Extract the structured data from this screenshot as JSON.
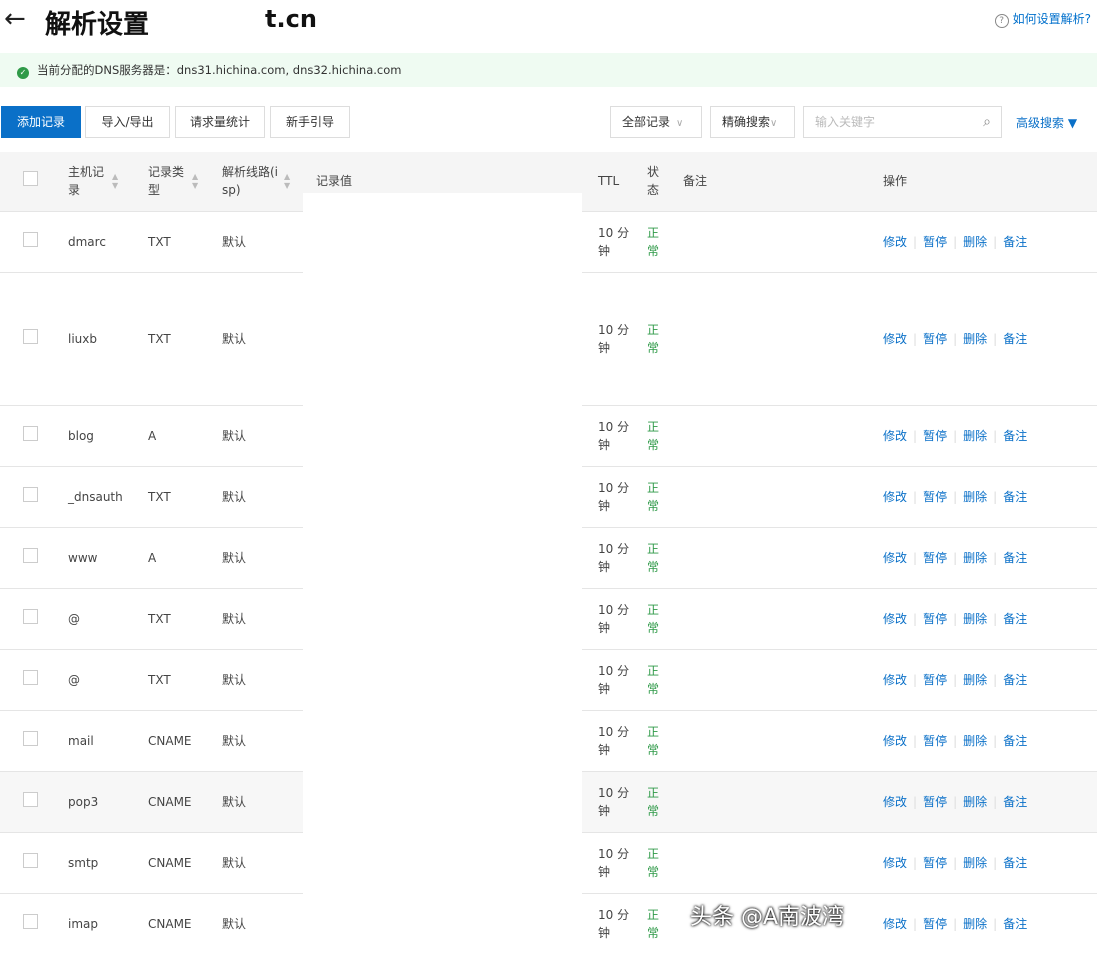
{
  "header": {
    "back_icon": "arrow-left-icon",
    "title": "解析设置",
    "domain": "t.cn",
    "help": "如何设置解析?"
  },
  "notice": {
    "text": "当前分配的DNS服务器是：dns31.hichina.com, dns32.hichina.com"
  },
  "toolbar": {
    "add": "添加记录",
    "import_export": "导入/导出",
    "stats": "请求量统计",
    "guide": "新手引导",
    "filter": "全部记录",
    "match": "精确搜索",
    "search_placeholder": "输入关键字",
    "advanced": "高级搜索 ▼"
  },
  "table": {
    "headers": {
      "host": "主机记录",
      "type": "记录类型",
      "line": "解析线路(isp)",
      "value": "记录值",
      "ttl": "TTL",
      "status": "状态",
      "remark": "备注",
      "ops": "操作"
    },
    "ops": {
      "edit": "修改",
      "pause": "暂停",
      "delete": "删除",
      "remark": "备注"
    },
    "rows": [
      {
        "host": "dmarc",
        "type": "TXT",
        "line": "默认",
        "ttl": "10 分钟",
        "status": "正常"
      },
      {
        "host": "liuxb",
        "type": "TXT",
        "line": "默认",
        "ttl": "10 分钟",
        "status": "正常"
      },
      {
        "host": "blog",
        "type": "A",
        "line": "默认",
        "ttl": "10 分钟",
        "status": "正常"
      },
      {
        "host": "_dnsauth",
        "type": "TXT",
        "line": "默认",
        "ttl": "10 分钟",
        "status": "正常"
      },
      {
        "host": "www",
        "type": "A",
        "line": "默认",
        "ttl": "10 分钟",
        "status": "正常"
      },
      {
        "host": "@",
        "type": "TXT",
        "line": "默认",
        "ttl": "10 分钟",
        "status": "正常"
      },
      {
        "host": "@",
        "type": "TXT",
        "line": "默认",
        "ttl": "10 分钟",
        "status": "正常"
      },
      {
        "host": "mail",
        "type": "CNAME",
        "line": "默认",
        "ttl": "10 分钟",
        "status": "正常"
      },
      {
        "host": "pop3",
        "type": "CNAME",
        "line": "默认",
        "ttl": "10 分钟",
        "status": "正常"
      },
      {
        "host": "smtp",
        "type": "CNAME",
        "line": "默认",
        "ttl": "10 分钟",
        "status": "正常"
      },
      {
        "host": "imap",
        "type": "CNAME",
        "line": "默认",
        "ttl": "10 分钟",
        "status": "正常"
      }
    ]
  },
  "watermark": "头条 @A南波湾",
  "colors": {
    "primary": "#0a70c8",
    "success": "#2f9a48",
    "notice_bg": "#effbf2"
  }
}
